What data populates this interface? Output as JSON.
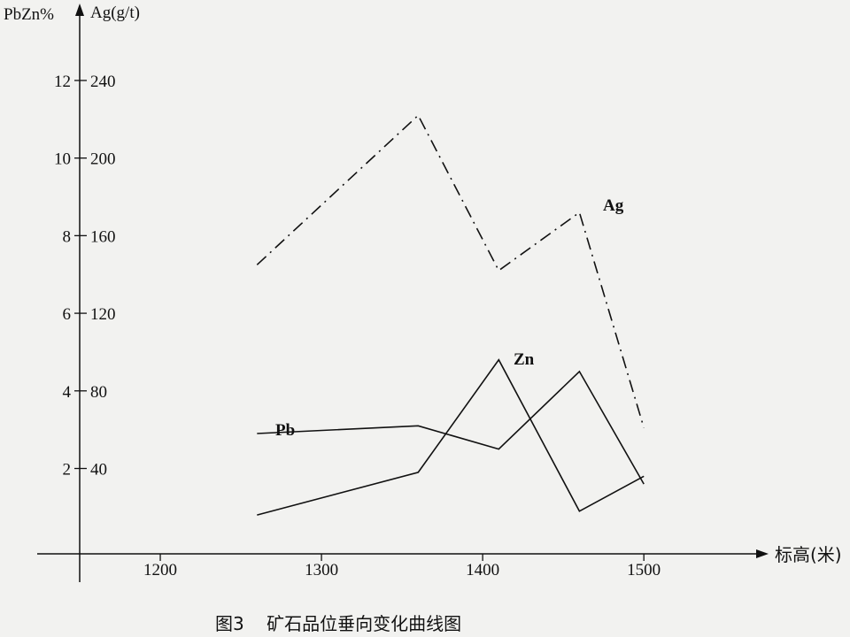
{
  "chart_data": {
    "type": "line",
    "caption": "图3    矿石品位垂向变化曲线图",
    "left_axis_label": "PbZn%",
    "right_axis_label": "Ag(g/t)",
    "xlabel": "标高(米)",
    "x_ticks": [
      1200,
      1300,
      1400,
      1500
    ],
    "y_ticks_pbzn": [
      2,
      4,
      6,
      8,
      10,
      12
    ],
    "y_ticks_ag": [
      40,
      80,
      120,
      160,
      200,
      240
    ],
    "xlim": [
      1150,
      1540
    ],
    "ylim_pbzn": [
      -0.2,
      13.8
    ],
    "ylim_ag": [
      -4,
      276
    ],
    "series": [
      {
        "name": "Ag",
        "axis": "ag",
        "style": "dashdot",
        "x": [
          1260,
          1360,
          1410,
          1460,
          1500
        ],
        "y": [
          145,
          222,
          142,
          172,
          61
        ]
      },
      {
        "name": "Pb",
        "axis": "pbzn",
        "style": "solid",
        "x": [
          1260,
          1360,
          1410,
          1460,
          1500
        ],
        "y": [
          2.9,
          3.1,
          2.5,
          4.5,
          1.6
        ]
      },
      {
        "name": "Zn",
        "axis": "pbzn",
        "style": "solid",
        "x": [
          1260,
          1360,
          1410,
          1460,
          1500
        ],
        "y": [
          0.8,
          1.9,
          4.8,
          0.9,
          1.8
        ]
      }
    ]
  }
}
